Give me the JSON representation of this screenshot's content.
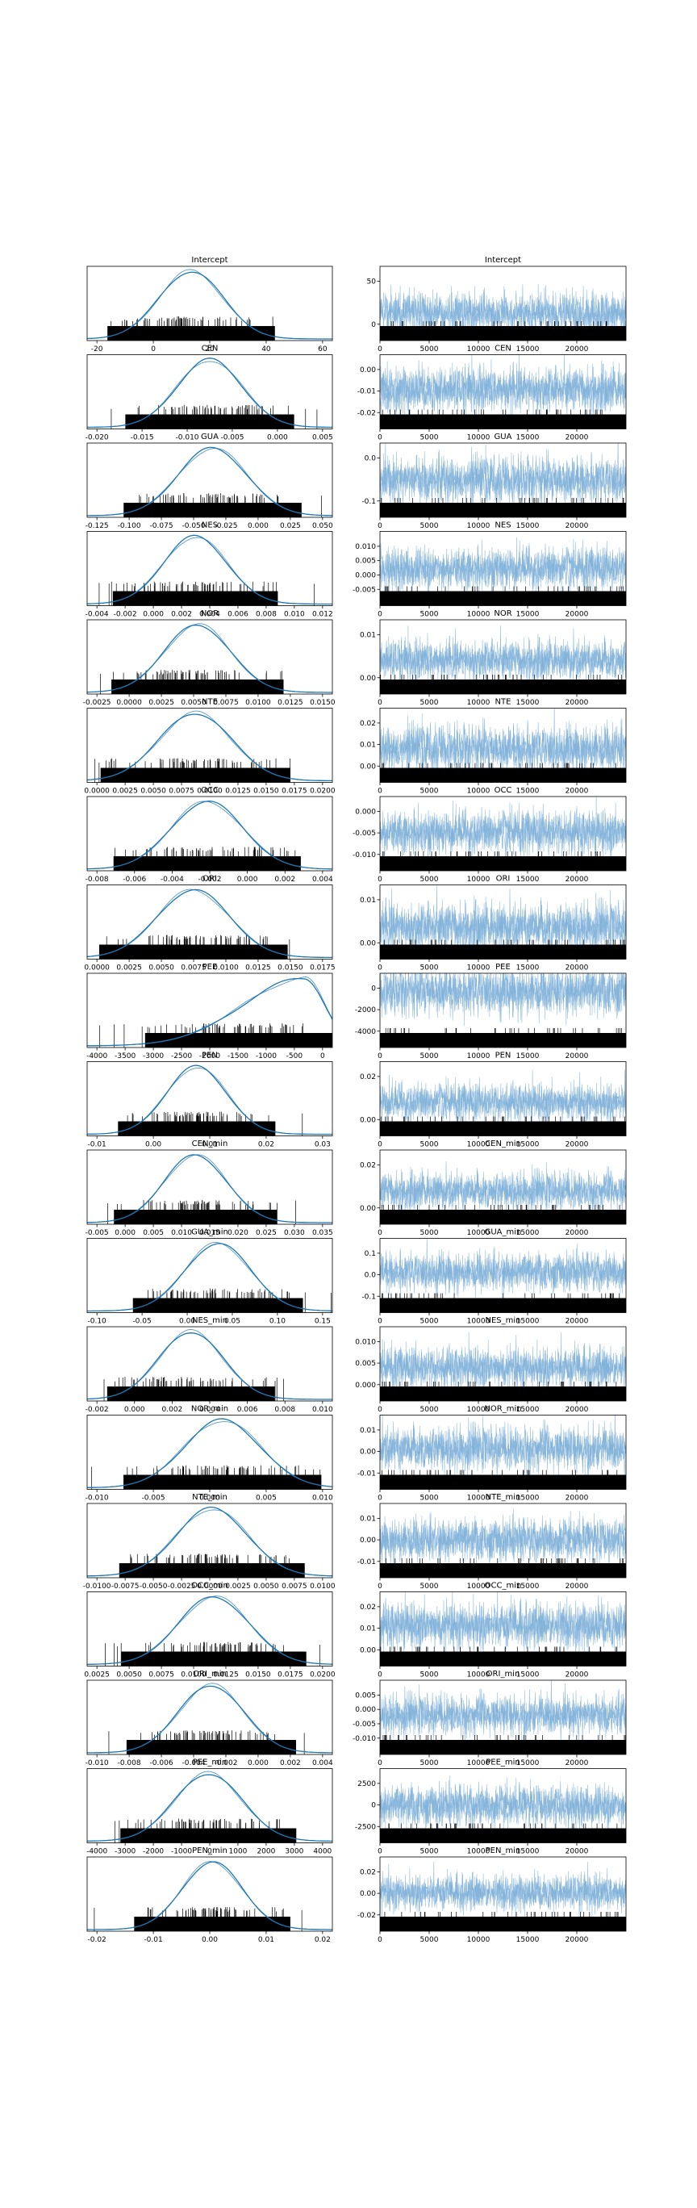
{
  "chart_data": [
    {
      "title": "Intercept",
      "type": "density",
      "xticks": [
        "-20",
        "0",
        "20",
        "40",
        "60"
      ],
      "xlim": [
        -22,
        77
      ],
      "peak": 20,
      "spread": 13,
      "skew": 0
    },
    {
      "title": "CEN",
      "type": "density",
      "xticks": [
        "-0.020",
        "-0.015",
        "-0.010",
        "-0.005",
        "0.000",
        "0.005"
      ],
      "xlim": [
        -0.025,
        0.009
      ],
      "peak": -0.008,
      "spread": 0.0045,
      "skew": 0
    },
    {
      "title": "GUA",
      "type": "density",
      "xticks": [
        "-0.125",
        "-0.100",
        "-0.075",
        "-0.050",
        "-0.025",
        "0.000",
        "0.025",
        "0.050"
      ],
      "xlim": [
        -0.14,
        0.075
      ],
      "peak": -0.03,
      "spread": 0.03,
      "skew": 0
    },
    {
      "title": "NES",
      "type": "density",
      "xticks": [
        "-0.004",
        "-0.002",
        "0.000",
        "0.002",
        "0.004",
        "0.006",
        "0.008",
        "0.010",
        "0.012"
      ],
      "xlim": [
        -0.0045,
        0.0125
      ],
      "peak": 0.003,
      "spread": 0.0022,
      "skew": 0
    },
    {
      "title": "NOR",
      "type": "density",
      "xticks": [
        "-0.0025",
        "0.0000",
        "0.0025",
        "0.0050",
        "0.0075",
        "0.0100",
        "0.0125",
        "0.0150"
      ],
      "xlim": [
        -0.0035,
        0.0165
      ],
      "peak": 0.0055,
      "spread": 0.0027,
      "skew": 0
    },
    {
      "title": "NTE",
      "type": "density",
      "xticks": [
        "0.0000",
        "0.0025",
        "0.0050",
        "0.0075",
        "0.0100",
        "0.0125",
        "0.0150",
        "0.0175",
        "0.0200"
      ],
      "xlim": [
        -0.0005,
        0.021
      ],
      "peak": 0.009,
      "spread": 0.0032,
      "skew": 0
    },
    {
      "title": "OCC",
      "type": "density",
      "xticks": [
        "-0.008",
        "-0.006",
        "-0.004",
        "-0.002",
        "0.000",
        "0.002",
        "0.004"
      ],
      "xlim": [
        -0.0095,
        0.0048
      ],
      "peak": -0.0025,
      "spread": 0.0021,
      "skew": 0
    },
    {
      "title": "ORI",
      "type": "density",
      "xticks": [
        "0.0000",
        "0.0025",
        "0.0050",
        "0.0075",
        "0.0100",
        "0.0125",
        "0.0150",
        "0.0175"
      ],
      "xlim": [
        -0.0008,
        0.0195
      ],
      "peak": 0.008,
      "spread": 0.003,
      "skew": 0
    },
    {
      "title": "PEE",
      "type": "density",
      "xticks": [
        "-4000",
        "-3500",
        "-3000",
        "-2500",
        "-2000",
        "-1500",
        "-1000",
        "-500",
        "0"
      ],
      "xlim": [
        -4200,
        200
      ],
      "peak": -300,
      "spread": 1100,
      "skew": -1
    },
    {
      "title": "PEN",
      "type": "density",
      "xticks": [
        "-0.01",
        "0.00",
        "0.01",
        "0.02",
        "0.03"
      ],
      "xlim": [
        -0.016,
        0.031
      ],
      "peak": 0.005,
      "spread": 0.0058,
      "skew": 0
    },
    {
      "title": "CEN_min",
      "type": "density",
      "xticks": [
        "-0.005",
        "0.000",
        "0.005",
        "0.010",
        "0.015",
        "0.020",
        "0.025",
        "0.030",
        "0.035"
      ],
      "xlim": [
        -0.006,
        0.037
      ],
      "peak": 0.013,
      "spread": 0.0055,
      "skew": 0
    },
    {
      "title": "GUA_min",
      "type": "density",
      "xticks": [
        "-0.10",
        "-0.05",
        "0.00",
        "0.05",
        "0.10",
        "0.15"
      ],
      "xlim": [
        -0.11,
        0.19
      ],
      "peak": 0.05,
      "spread": 0.04,
      "skew": 0
    },
    {
      "title": "NES_min",
      "type": "density",
      "xticks": [
        "-0.002",
        "0.000",
        "0.002",
        "0.004",
        "0.006",
        "0.008",
        "0.010"
      ],
      "xlim": [
        -0.0025,
        0.0112
      ],
      "peak": 0.0033,
      "spread": 0.0018,
      "skew": 0
    },
    {
      "title": "NOR_min",
      "type": "density",
      "xticks": [
        "-0.010",
        "-0.005",
        "0.000",
        "0.005",
        "0.010"
      ],
      "xlim": [
        -0.015,
        0.014
      ],
      "peak": 0.001,
      "spread": 0.0045,
      "skew": 0
    },
    {
      "title": "NTE_min",
      "type": "density",
      "xticks": [
        "-0.0100",
        "-0.0075",
        "-0.0050",
        "-0.0025",
        "0.0000",
        "0.0025",
        "0.0050",
        "0.0075",
        "0.0100"
      ],
      "xlim": [
        -0.011,
        0.011
      ],
      "peak": 0.0002,
      "spread": 0.0032,
      "skew": 0
    },
    {
      "title": "OCC_min",
      "type": "density",
      "xticks": [
        "0.0025",
        "0.0050",
        "0.0075",
        "0.0100",
        "0.0125",
        "0.0150",
        "0.0175",
        "0.0200"
      ],
      "xlim": [
        0.0003,
        0.021
      ],
      "peak": 0.011,
      "spread": 0.003,
      "skew": 0
    },
    {
      "title": "ORI_min",
      "type": "density",
      "xticks": [
        "-0.010",
        "-0.008",
        "-0.006",
        "-0.004",
        "-0.002",
        "0.000",
        "0.002",
        "0.004"
      ],
      "xlim": [
        -0.011,
        0.0048
      ],
      "peak": -0.003,
      "spread": 0.0021,
      "skew": 0
    },
    {
      "title": "PEE_min",
      "type": "density",
      "xticks": [
        "-4000",
        "-3000",
        "-2000",
        "-1000",
        "0",
        "1000",
        "2000",
        "3000",
        "4000"
      ],
      "xlim": [
        -4300,
        4400
      ],
      "peak": 0,
      "spread": 1200,
      "skew": 0
    },
    {
      "title": "PEN_min",
      "type": "density",
      "xticks": [
        "-0.02",
        "-0.01",
        "0.00",
        "0.01",
        "0.02"
      ],
      "xlim": [
        -0.023,
        0.026
      ],
      "peak": 0.002,
      "spread": 0.006,
      "skew": 0
    }
  ],
  "trace_data": [
    {
      "title": "Intercept",
      "yticks": [
        "0",
        "50"
      ],
      "ylim": [
        -15,
        75
      ],
      "center": 18,
      "amp": 22
    },
    {
      "title": "CEN",
      "yticks": [
        "-0.02",
        "-0.01",
        "0.00"
      ],
      "ylim": [
        -0.026,
        0.008
      ],
      "center": -0.008,
      "amp": 0.009
    },
    {
      "title": "GUA",
      "yticks": [
        "-0.1",
        "0.0"
      ],
      "ylim": [
        -0.14,
        0.08
      ],
      "center": -0.03,
      "amp": 0.06
    },
    {
      "title": "NES",
      "yticks": [
        "-0.005",
        "0.000",
        "0.005",
        "0.010"
      ],
      "ylim": [
        -0.006,
        0.012
      ],
      "center": 0.003,
      "amp": 0.0045
    },
    {
      "title": "NOR",
      "yticks": [
        "0.00",
        "0.01"
      ],
      "ylim": [
        -0.004,
        0.017
      ],
      "center": 0.0055,
      "amp": 0.005
    },
    {
      "title": "NTE",
      "yticks": [
        "0.00",
        "0.01",
        "0.02"
      ],
      "ylim": [
        -0.001,
        0.021
      ],
      "center": 0.009,
      "amp": 0.006
    },
    {
      "title": "OCC",
      "yticks": [
        "-0.010",
        "-0.005",
        "0.000"
      ],
      "ylim": [
        -0.0105,
        0.005
      ],
      "center": -0.0025,
      "amp": 0.004
    },
    {
      "title": "ORI",
      "yticks": [
        "0.00",
        "0.01"
      ],
      "ylim": [
        -0.001,
        0.02
      ],
      "center": 0.008,
      "amp": 0.006
    },
    {
      "title": "PEE",
      "yticks": [
        "-4000",
        "-2000",
        "0"
      ],
      "ylim": [
        -4300,
        300
      ],
      "center": -800,
      "amp": 1300
    },
    {
      "title": "PEN",
      "yticks": [
        "0.00",
        "0.02"
      ],
      "ylim": [
        -0.017,
        0.032
      ],
      "center": 0.005,
      "amp": 0.011
    },
    {
      "title": "CEN_min",
      "yticks": [
        "0.00",
        "0.02"
      ],
      "ylim": [
        -0.007,
        0.038
      ],
      "center": 0.013,
      "amp": 0.01
    },
    {
      "title": "GUA_min",
      "yticks": [
        "-0.1",
        "0.0",
        "0.1"
      ],
      "ylim": [
        -0.12,
        0.19
      ],
      "center": 0.05,
      "amp": 0.07
    },
    {
      "title": "NES_min",
      "yticks": [
        "0.000",
        "0.005",
        "0.010"
      ],
      "ylim": [
        -0.003,
        0.0112
      ],
      "center": 0.0033,
      "amp": 0.0035
    },
    {
      "title": "NOR_min",
      "yticks": [
        "-0.01",
        "0.00",
        "0.01"
      ],
      "ylim": [
        -0.016,
        0.015
      ],
      "center": 0.001,
      "amp": 0.008
    },
    {
      "title": "NTE_min",
      "yticks": [
        "-0.01",
        "0.00",
        "0.01"
      ],
      "ylim": [
        -0.012,
        0.012
      ],
      "center": 0.0002,
      "amp": 0.006
    },
    {
      "title": "OCC_min",
      "yticks": [
        "0.00",
        "0.01",
        "0.02"
      ],
      "ylim": [
        -0.001,
        0.021
      ],
      "center": 0.011,
      "amp": 0.006
    },
    {
      "title": "ORI_min",
      "yticks": [
        "-0.010",
        "-0.005",
        "0.000",
        "0.005"
      ],
      "ylim": [
        -0.012,
        0.005
      ],
      "center": -0.003,
      "amp": 0.004
    },
    {
      "title": "PEE_min",
      "yticks": [
        "-2500",
        "0",
        "2500"
      ],
      "ylim": [
        -4500,
        4500
      ],
      "center": 0,
      "amp": 2200
    },
    {
      "title": "PEN_min",
      "yticks": [
        "-0.02",
        "0.00",
        "0.02"
      ],
      "ylim": [
        -0.025,
        0.027
      ],
      "center": 0.002,
      "amp": 0.011
    }
  ],
  "trace_x": {
    "ticks": [
      0,
      5000,
      10000,
      15000,
      20000
    ],
    "tick_labels": [
      "0",
      "5000",
      "10000",
      "15000",
      "20000"
    ],
    "xlim": [
      0,
      25000
    ]
  },
  "colors": {
    "line": "#1f77b4",
    "trace": "#7fb0d8",
    "rug": "#000000",
    "axis": "#000000"
  }
}
